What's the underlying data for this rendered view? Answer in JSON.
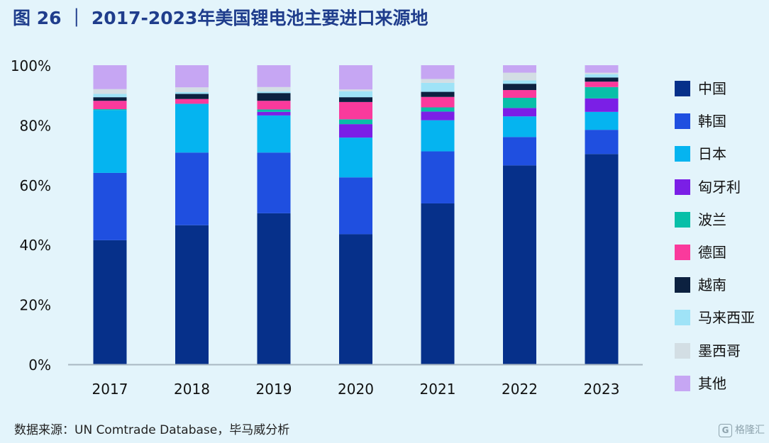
{
  "title": "图 26 ｜ 2017-2023年美国锂电池主要进口来源地",
  "source": "数据来源：UN Comtrade Database，毕马威分析",
  "watermark": "格隆汇",
  "watermark_logo": "G",
  "colors": {
    "中国": "#06308a",
    "韩国": "#1f4fe0",
    "日本": "#05b4f0",
    "匈牙利": "#7b1fe6",
    "波兰": "#08bfa8",
    "德国": "#fa3a9c",
    "越南": "#0c2140",
    "马来西亚": "#9fe3f7",
    "墨西哥": "#d3dee4",
    "其他": "#c6a6f3"
  },
  "chart_data": {
    "type": "bar",
    "stacked": true,
    "title": "2017-2023年美国锂电池主要进口来源地",
    "xlabel": "",
    "ylabel": "",
    "ylim": [
      0,
      100
    ],
    "yticks": [
      "0%",
      "20%",
      "40%",
      "60%",
      "80%",
      "100%"
    ],
    "categories": [
      "2017",
      "2018",
      "2019",
      "2020",
      "2021",
      "2022",
      "2023"
    ],
    "legend_position": "right",
    "series": [
      {
        "name": "中国",
        "values": [
          41.5,
          46.5,
          50.5,
          43.5,
          53.8,
          66.5,
          70.3
        ]
      },
      {
        "name": "韩国",
        "values": [
          22.5,
          24.3,
          20.3,
          19.0,
          17.4,
          9.5,
          8.1
        ]
      },
      {
        "name": "日本",
        "values": [
          21.0,
          16.3,
          12.4,
          13.3,
          10.4,
          6.9,
          6.0
        ]
      },
      {
        "name": "匈牙利",
        "values": [
          0.0,
          0.0,
          1.2,
          4.5,
          2.9,
          2.8,
          4.5
        ]
      },
      {
        "name": "波兰",
        "values": [
          0.3,
          0.0,
          0.8,
          1.6,
          1.4,
          3.4,
          3.8
        ]
      },
      {
        "name": "德国",
        "values": [
          2.8,
          1.6,
          2.9,
          5.8,
          3.5,
          2.6,
          1.8
        ]
      },
      {
        "name": "越南",
        "values": [
          1.2,
          1.7,
          2.6,
          1.6,
          1.7,
          2.1,
          1.4
        ]
      },
      {
        "name": "马来西亚",
        "values": [
          1.1,
          0.6,
          0.5,
          2.0,
          3.0,
          1.1,
          1.1
        ]
      },
      {
        "name": "墨西哥",
        "values": [
          1.6,
          1.6,
          1.5,
          0.6,
          1.3,
          2.6,
          0.5
        ]
      },
      {
        "name": "其他",
        "values": [
          8.0,
          7.4,
          7.3,
          8.1,
          4.6,
          2.5,
          2.5
        ]
      }
    ]
  }
}
